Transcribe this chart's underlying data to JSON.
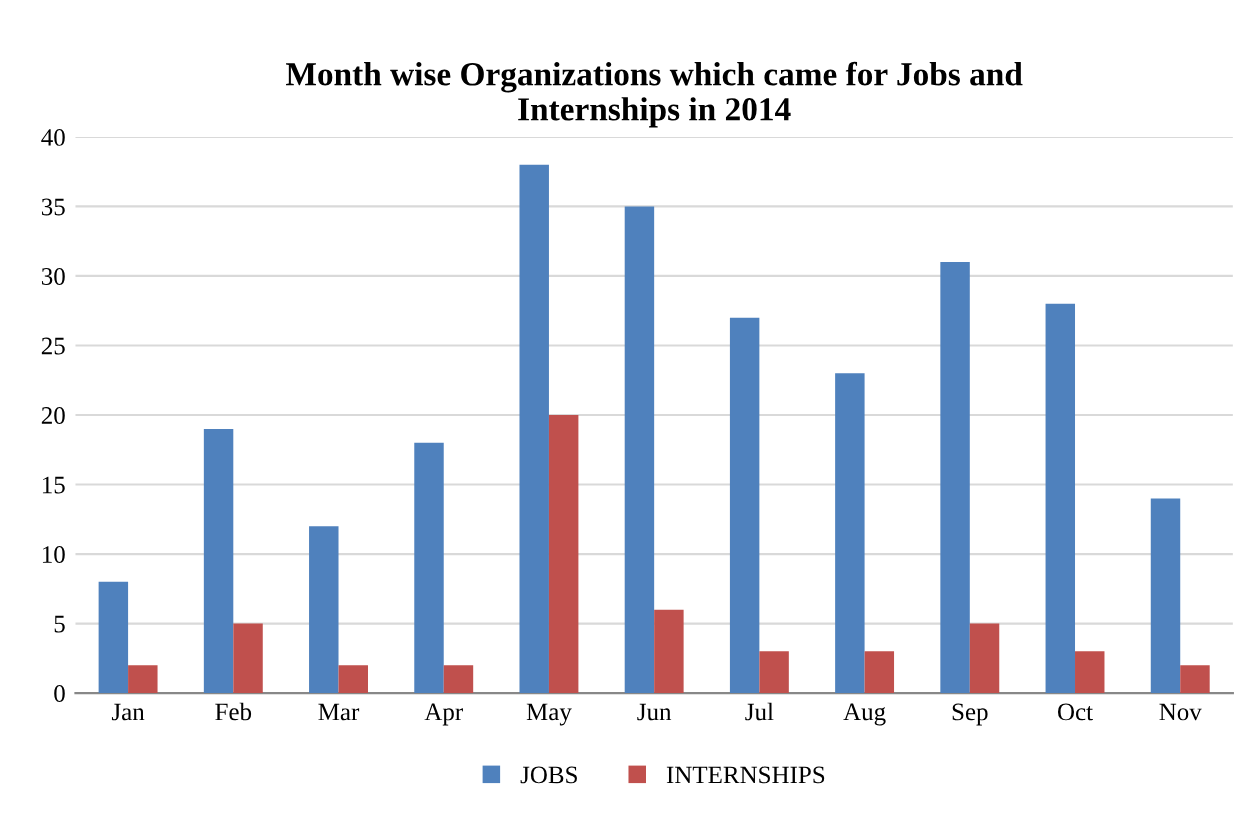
{
  "chart_data": {
    "type": "bar",
    "title": "Month wise Organizations which came for Jobs and\nInternships in 2014",
    "categories": [
      "Jan",
      "Feb",
      "Mar",
      "Apr",
      "May",
      "Jun",
      "Jul",
      "Aug",
      "Sep",
      "Oct",
      "Nov"
    ],
    "series": [
      {
        "name": "JOBS",
        "color": "#4f81bd",
        "values": [
          8,
          19,
          12,
          18,
          38,
          35,
          27,
          23,
          31,
          28,
          14
        ]
      },
      {
        "name": "INTERNSHIPS",
        "color": "#c0504d",
        "values": [
          2,
          5,
          2,
          2,
          20,
          6,
          3,
          3,
          5,
          3,
          2
        ]
      }
    ],
    "ylim": [
      0,
      40
    ],
    "yticks": [
      0,
      5,
      10,
      15,
      20,
      25,
      30,
      35,
      40
    ],
    "grid": "y",
    "legend": "bottom"
  }
}
